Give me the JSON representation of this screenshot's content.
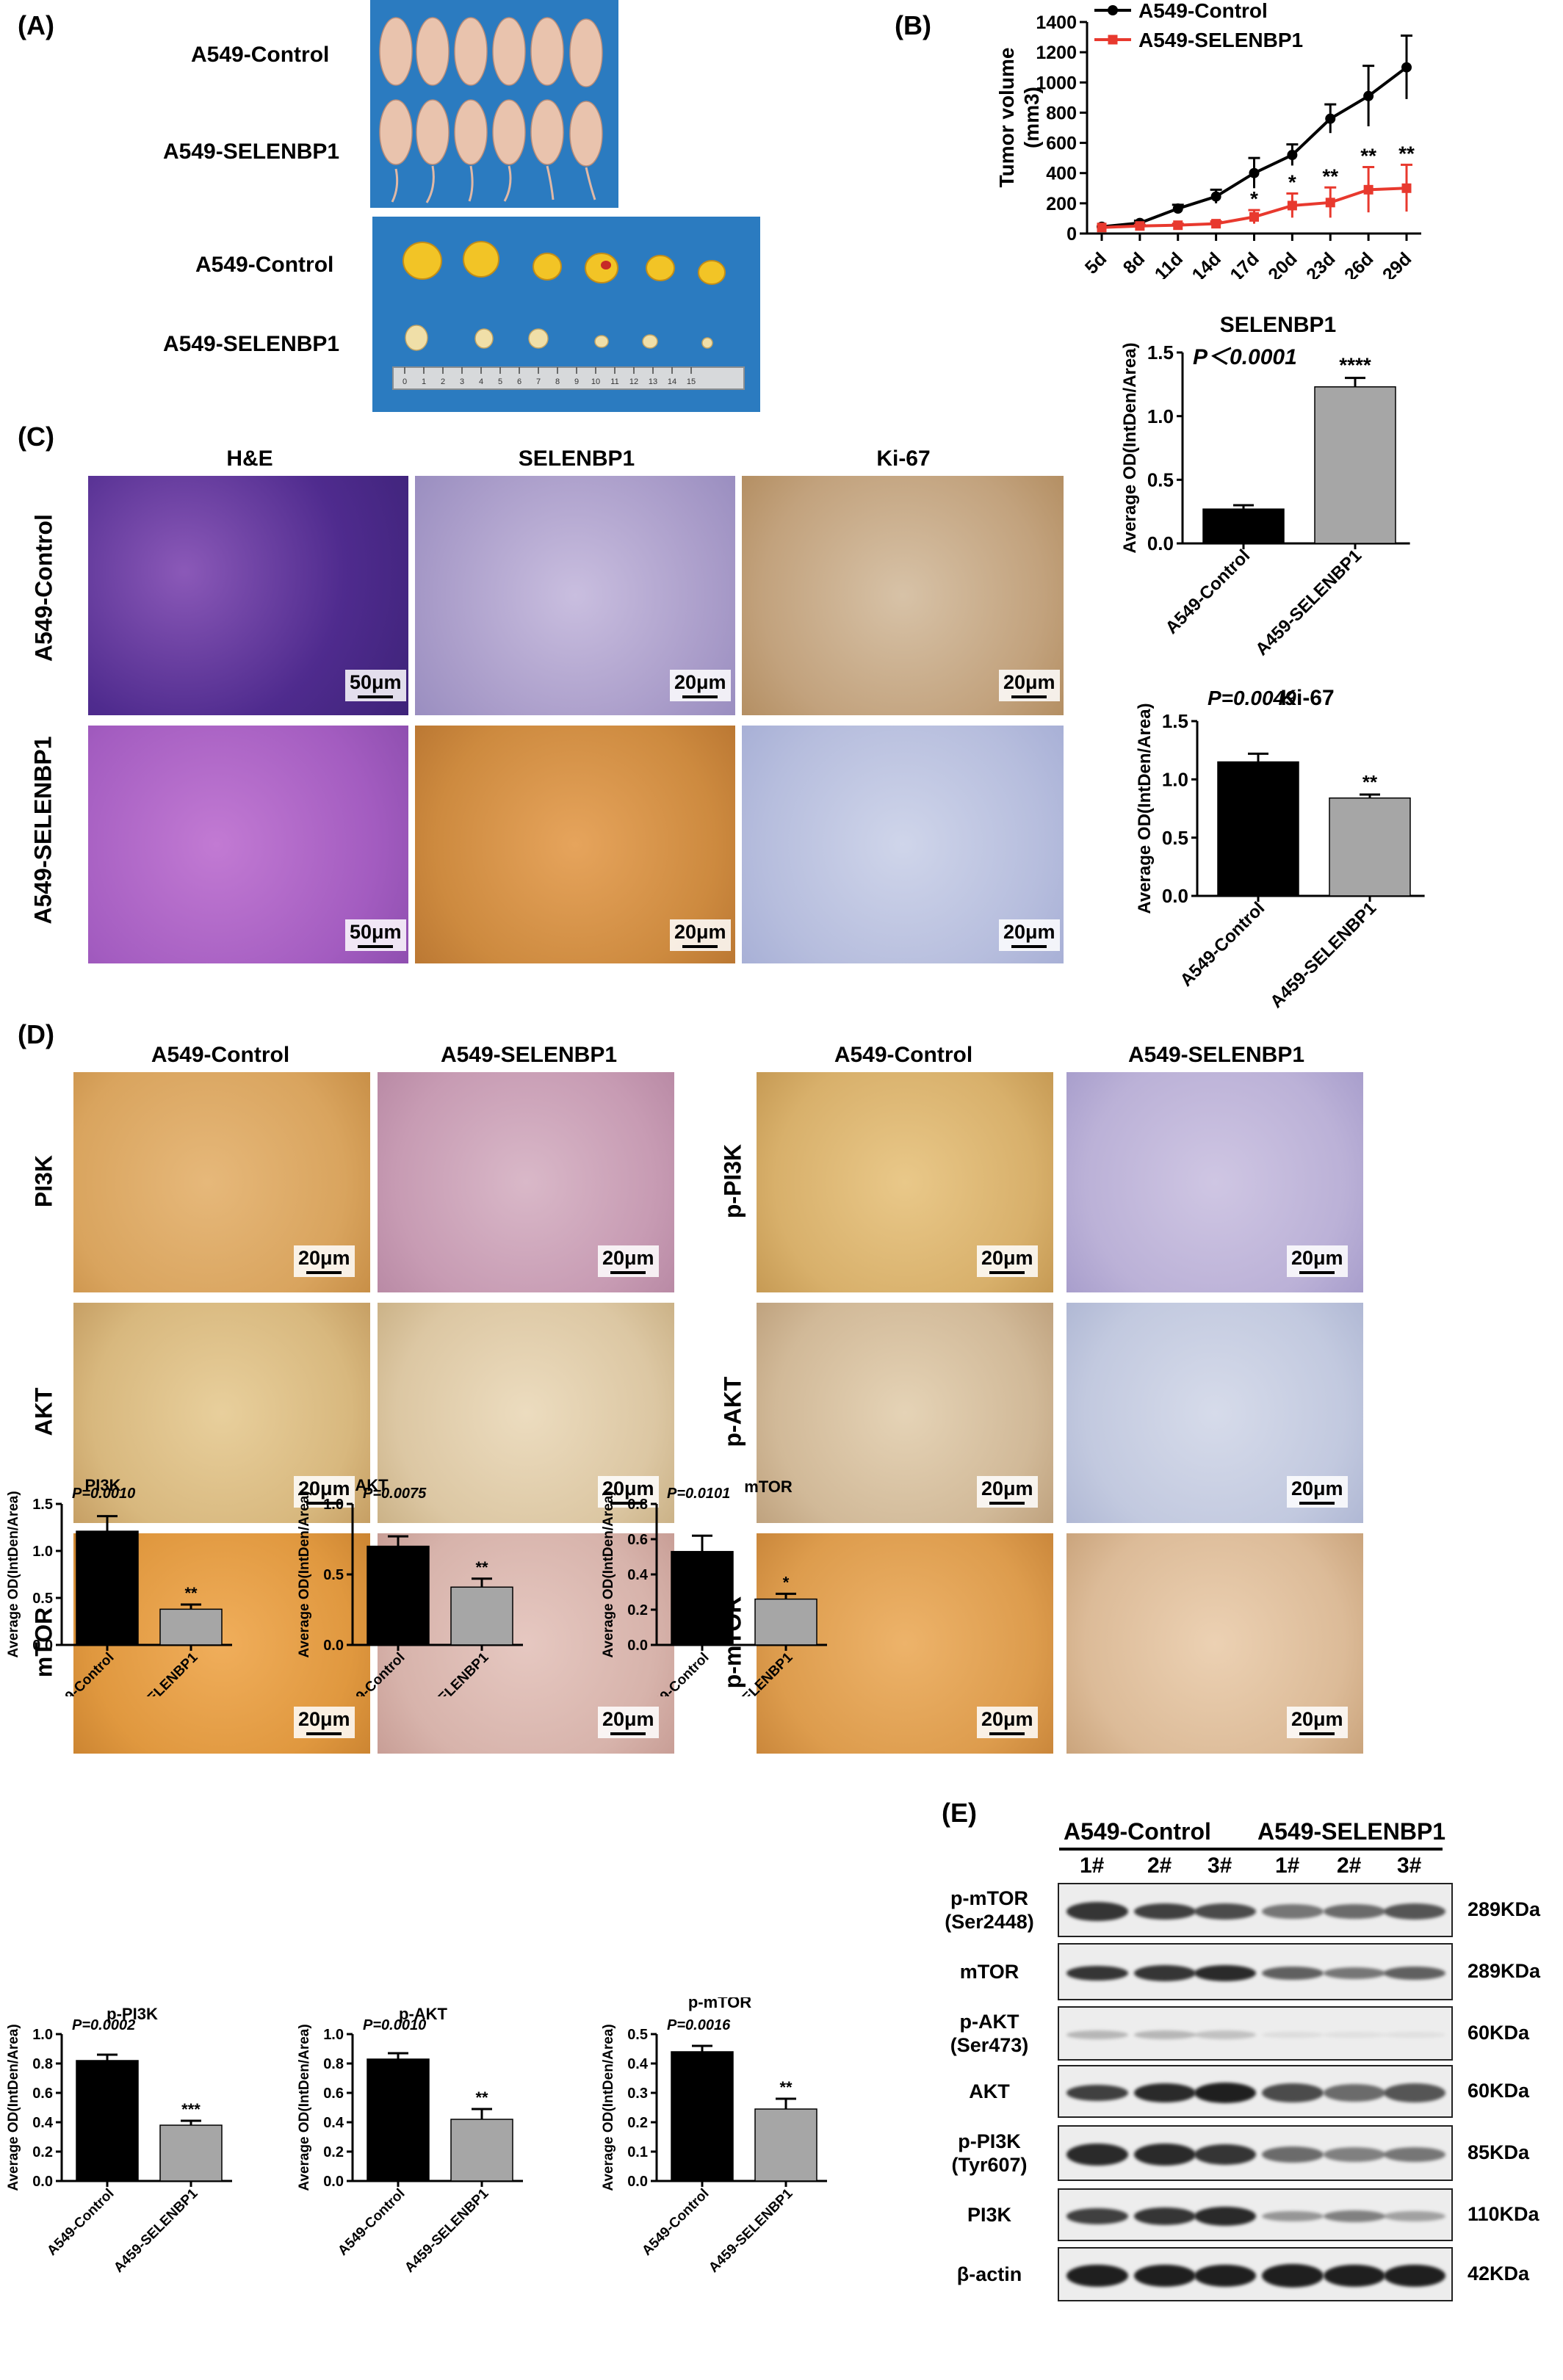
{
  "panels": {
    "a": "(A)",
    "b": "(B)",
    "c": "(C)",
    "d": "(D)",
    "e": "(E)"
  },
  "panel_a": {
    "row1": "A549-Control",
    "row2": "A549-SELENBP1",
    "row3": "A549-Control",
    "row4": "A549-SELENBP1",
    "ruler_marks": [
      "0",
      "1",
      "2",
      "3",
      "4",
      "5",
      "6",
      "7",
      "8",
      "9",
      "10",
      "11",
      "12",
      "13",
      "14",
      "15"
    ]
  },
  "panel_c": {
    "col_he": "H&E",
    "col_selenbp1": "SELENBP1",
    "col_ki67": "Ki-67",
    "row_control": "A549-Control",
    "row_selenbp1": "A549-SELENBP1",
    "scale_50": "50μm",
    "scale_20": "20μm"
  },
  "panel_d": {
    "col_control": "A549-Control",
    "col_selenbp1": "A549-SELENBP1",
    "rows_left": [
      "PI3K",
      "AKT",
      "mTOR"
    ],
    "rows_right": [
      "p-PI3K",
      "p-AKT",
      "p-mTOR"
    ],
    "scale_20": "20μm"
  },
  "panel_e": {
    "group_control": "A549-Control",
    "group_selenbp1": "A549-SELENBP1",
    "lanes": [
      "1#",
      "2#",
      "3#",
      "1#",
      "2#",
      "3#"
    ],
    "rows": [
      {
        "label": "p-mTOR\n(Ser2448)",
        "kda": "289KDa"
      },
      {
        "label": "mTOR",
        "kda": "289KDa"
      },
      {
        "label": "p-AKT\n(Ser473)",
        "kda": "60KDa"
      },
      {
        "label": "AKT",
        "kda": "60KDa"
      },
      {
        "label": "p-PI3K\n(Tyr607)",
        "kda": "85KDa"
      },
      {
        "label": "PI3K",
        "kda": "110KDa"
      },
      {
        "label": "β-actin",
        "kda": "42KDa"
      }
    ]
  },
  "colors": {
    "control": "#000000",
    "selenbp1": "#e8392e",
    "bar_control": "#000000",
    "bar_selenbp1": "#a6a6a6",
    "photo_bg": "#2b7bc0"
  },
  "chart_data": [
    {
      "id": "tumor_volume",
      "type": "line",
      "title": "",
      "ylabel": "Tumor volume\n(mm3)",
      "xlabel": "",
      "x": [
        "5d",
        "8d",
        "11d",
        "14d",
        "17d",
        "20d",
        "23d",
        "26d",
        "29d"
      ],
      "ylim": [
        0,
        1400
      ],
      "yticks": [
        0,
        200,
        400,
        600,
        800,
        1000,
        1200,
        1400
      ],
      "legend_position": "top-left",
      "series": [
        {
          "name": "A549-Control",
          "values": [
            45,
            70,
            165,
            245,
            400,
            520,
            760,
            910,
            1100
          ],
          "errors": [
            0,
            15,
            25,
            45,
            100,
            70,
            95,
            200,
            210
          ]
        },
        {
          "name": "A549-SELENBP1",
          "values": [
            40,
            50,
            55,
            65,
            110,
            185,
            205,
            290,
            300
          ],
          "errors": [
            0,
            8,
            10,
            15,
            45,
            80,
            100,
            150,
            155
          ]
        }
      ],
      "annotations": [
        "",
        "",
        "",
        "",
        "*",
        "*",
        "**",
        "**",
        "**"
      ]
    },
    {
      "id": "selenbp1_od",
      "type": "bar",
      "title": "SELENBP1",
      "ylabel": "Average OD(IntDen/Area)",
      "categories": [
        "A549-Control",
        "A459-SELENBP1"
      ],
      "values": [
        0.27,
        1.23
      ],
      "errors": [
        0.03,
        0.07
      ],
      "ylim": [
        0,
        1.5
      ],
      "yticks": [
        "0.0",
        "0.5",
        "1.0",
        "1.5"
      ],
      "pvalue": "P＜0.0001",
      "significance": "****"
    },
    {
      "id": "ki67_od",
      "type": "bar",
      "title": "Ki-67",
      "ylabel": "Average OD(IntDen/Area)",
      "categories": [
        "A549-Control",
        "A459-SELENBP1"
      ],
      "values": [
        1.15,
        0.84
      ],
      "errors": [
        0.07,
        0.03
      ],
      "ylim": [
        0,
        1.5
      ],
      "yticks": [
        "0.0",
        "0.5",
        "1.0",
        "1.5"
      ],
      "pvalue": "P=0.0049",
      "significance": "**"
    },
    {
      "id": "pi3k_od",
      "type": "bar",
      "title": "PI3K",
      "ylabel": "Average OD(IntDen/Area)",
      "categories": [
        "A549-Control",
        "A459-SELENBP1"
      ],
      "values": [
        1.21,
        0.38
      ],
      "errors": [
        0.16,
        0.05
      ],
      "ylim": [
        0,
        1.5
      ],
      "yticks": [
        "0.0",
        "0.5",
        "1.0",
        "1.5"
      ],
      "pvalue": "P=0.0010",
      "significance": "**"
    },
    {
      "id": "akt_od",
      "type": "bar",
      "title": "AKT",
      "ylabel": "Average OD(IntDen/Area)",
      "categories": [
        "A549-Control",
        "A459-SELENBP1"
      ],
      "values": [
        0.7,
        0.41
      ],
      "errors": [
        0.07,
        0.06
      ],
      "ylim": [
        0,
        1.0
      ],
      "yticks": [
        "0.0",
        "0.5",
        "1.0"
      ],
      "pvalue": "P=0.0075",
      "significance": "**"
    },
    {
      "id": "mtor_od",
      "type": "bar",
      "title": "mTOR",
      "ylabel": "Average OD(IntDen/Area)",
      "categories": [
        "A549-Control",
        "A459-SELENBP1"
      ],
      "values": [
        0.53,
        0.26
      ],
      "errors": [
        0.09,
        0.03
      ],
      "ylim": [
        0,
        0.8
      ],
      "yticks": [
        "0.0",
        "0.2",
        "0.4",
        "0.6",
        "0.8"
      ],
      "pvalue": "P=0.0101",
      "significance": "*"
    },
    {
      "id": "ppi3k_od",
      "type": "bar",
      "title": "p-PI3K",
      "ylabel": "Average OD(IntDen/Area)",
      "categories": [
        "A549-Control",
        "A459-SELENBP1"
      ],
      "values": [
        0.82,
        0.38
      ],
      "errors": [
        0.04,
        0.03
      ],
      "ylim": [
        0,
        1.0
      ],
      "yticks": [
        "0.0",
        "0.2",
        "0.4",
        "0.6",
        "0.8",
        "1.0"
      ],
      "pvalue": "P=0.0002",
      "significance": "***"
    },
    {
      "id": "pakt_od",
      "type": "bar",
      "title": "p-AKT",
      "ylabel": "Average OD(IntDen/Area)",
      "categories": [
        "A549-Control",
        "A459-SELENBP1"
      ],
      "values": [
        0.83,
        0.42
      ],
      "errors": [
        0.04,
        0.07
      ],
      "ylim": [
        0,
        1.0
      ],
      "yticks": [
        "0.0",
        "0.2",
        "0.4",
        "0.6",
        "0.8",
        "1.0"
      ],
      "pvalue": "P=0.0010",
      "significance": "**"
    },
    {
      "id": "pmtor_od",
      "type": "bar",
      "title": "p-mTOR",
      "ylabel": "Average OD(IntDen/Area)",
      "categories": [
        "A549-Control",
        "A459-SELENBP1"
      ],
      "values": [
        0.44,
        0.245
      ],
      "errors": [
        0.02,
        0.035
      ],
      "ylim": [
        0,
        0.5
      ],
      "yticks": [
        "0.0",
        "0.1",
        "0.2",
        "0.3",
        "0.4",
        "0.5"
      ],
      "pvalue": "P=0.0016",
      "significance": "**"
    }
  ]
}
